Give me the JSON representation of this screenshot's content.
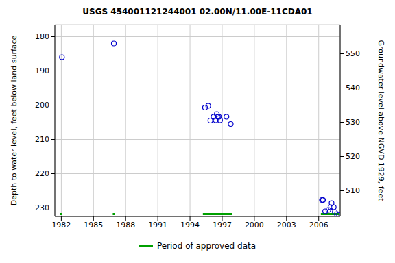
{
  "chart_data": {
    "type": "scatter",
    "title": "USGS 454001121244001 02.00N/11.00E-11CDA01",
    "x_label": "",
    "y_label": "Depth to water level, feet below land surface",
    "y2_label": "Groundwater level above NGVD 1929, feet",
    "xlim": [
      1981.4,
      2008.0
    ],
    "xticks": [
      1982,
      1985,
      1988,
      1991,
      1994,
      1997,
      2000,
      2003,
      2006
    ],
    "ylim": [
      176.5,
      232.5
    ],
    "yticks": [
      180,
      190,
      200,
      210,
      220,
      230
    ],
    "y2lim": [
      502.5,
      558.5
    ],
    "y2ticks": [
      510,
      520,
      530,
      540,
      550
    ],
    "grid": true,
    "series": [
      {
        "name": "Depth to water level",
        "color": "#0000cc",
        "marker": "circle",
        "x": [
          1982.06,
          1986.9,
          1995.4,
          1995.7,
          1995.9,
          1996.2,
          1996.4,
          1996.5,
          1996.6,
          1996.7,
          1996.8,
          1997.4,
          1997.8,
          2006.3,
          2006.4,
          2006.6,
          2006.9,
          2007.1,
          2007.2,
          2007.4,
          2007.5,
          2007.7,
          2007.9
        ],
        "values": [
          186,
          182,
          200.7,
          200.2,
          204.5,
          203.4,
          204.4,
          202.6,
          203.4,
          203.4,
          204.4,
          203.4,
          205.5,
          227.7,
          227.7,
          231.0,
          230.6,
          229.8,
          228.6,
          229.8,
          231.2,
          231.8,
          232.0
        ]
      }
    ],
    "approved_periods": {
      "name": "Period of approved data",
      "color": "#00a000",
      "periods": [
        [
          1981.9,
          1982.1
        ],
        [
          1986.8,
          1987.0
        ],
        [
          1995.2,
          1997.9
        ],
        [
          2006.2,
          2007.9
        ]
      ]
    }
  }
}
